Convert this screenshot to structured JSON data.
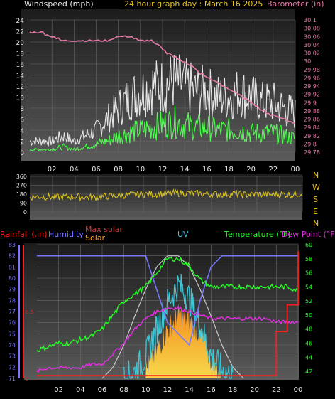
{
  "header": {
    "title": "24 hour graph day : March 16 2025",
    "left_label": "Windspeed (mph)",
    "right_label": "Barometer (in)"
  },
  "wind_dir_labels": [
    "N",
    "W",
    "S",
    "E",
    "N"
  ],
  "bottom_legend": {
    "rainfall": "Rainfall (.in)",
    "humidity": "Humidity",
    "max_solar": "Max solar",
    "solar": "Solar",
    "uv": "UV",
    "temperature": "Temperature (°F)",
    "dew_point": "Dew Point (°F)"
  },
  "colors": {
    "title": "#e6c319",
    "white_label": "#e8e8e8",
    "barometer": "#e87aa8",
    "wind_avg": "#4dff4d",
    "wind_gust": "#e6e6e6",
    "wind_dir": "#d9c21a",
    "rain": "#ff1c1c",
    "humidity": "#7777ff",
    "max_solar": "#c9c9c9",
    "solar": "#ffa020",
    "uv": "#3cc7d7",
    "temperature": "#22ff22",
    "dew_point": "#e62ee6"
  },
  "chart_data": [
    {
      "type": "line",
      "x_ticks": [
        "02",
        "04",
        "06",
        "08",
        "10",
        "12",
        "14",
        "16",
        "18",
        "20",
        "22",
        "00"
      ],
      "y_left_ticks": [
        "0",
        "2",
        "4",
        "6",
        "8",
        "10",
        "12",
        "14",
        "16",
        "18",
        "20",
        "22",
        "24"
      ],
      "y_right_ticks": [
        "29.78",
        "29.8",
        "29.82",
        "29.84",
        "29.86",
        "29.88",
        "29.9",
        "29.92",
        "29.94",
        "29.96",
        "29.98",
        "30",
        "30.02",
        "30.04",
        "30.06",
        "30.08",
        "30.1"
      ],
      "ylim_left": [
        0,
        24
      ],
      "ylim_right": [
        29.78,
        30.1
      ],
      "series": [
        {
          "name": "Windspeed (mph)",
          "axis": "left",
          "x": [
            0,
            1,
            2,
            3,
            4,
            5,
            6,
            7,
            8,
            9,
            10,
            11,
            12,
            13,
            14,
            15,
            16,
            17,
            18,
            19,
            20,
            21,
            22,
            23,
            24
          ],
          "values": [
            0.5,
            0.5,
            0.5,
            1,
            0.5,
            1,
            1.5,
            2,
            3,
            3.5,
            4,
            4.5,
            5,
            5.5,
            5,
            4.5,
            4.5,
            4,
            4,
            4,
            3.5,
            3.5,
            3.5,
            3,
            2.5
          ]
        },
        {
          "x": [
            0,
            1,
            2,
            3,
            4,
            5,
            6,
            7,
            8,
            9,
            10,
            11,
            12,
            13,
            14,
            15,
            16,
            17,
            18,
            19,
            20,
            21,
            22,
            23,
            24
          ],
          "values": [
            2,
            2,
            2,
            3,
            2,
            3,
            4,
            6,
            8,
            10,
            11,
            12,
            12,
            13,
            12,
            11,
            11,
            10,
            10,
            11,
            10,
            9,
            9,
            8,
            7
          ]
        },
        {
          "name": "Barometer (in)",
          "axis": "right",
          "x": [
            0,
            1,
            2,
            3,
            4,
            5,
            6,
            7,
            8,
            9,
            10,
            11,
            12,
            13,
            14,
            15,
            16,
            17,
            18,
            19,
            20,
            21,
            22,
            23,
            24
          ],
          "values": [
            30.07,
            30.07,
            30.06,
            30.05,
            30.05,
            30.05,
            30.05,
            30.05,
            30.06,
            30.06,
            30.05,
            30.05,
            30.03,
            30.01,
            30.0,
            29.98,
            29.96,
            29.95,
            29.93,
            29.92,
            29.9,
            29.88,
            29.87,
            29.86,
            29.85
          ]
        }
      ]
    },
    {
      "type": "line",
      "y_ticks": [
        "360",
        "270",
        "180",
        "90",
        "0"
      ],
      "ylim": [
        0,
        360
      ],
      "series": [
        {
          "x": [
            0,
            1,
            2,
            3,
            4,
            5,
            6,
            7,
            8,
            9,
            10,
            11,
            12,
            13,
            14,
            15,
            16,
            17,
            18,
            19,
            20,
            21,
            22,
            23,
            24
          ],
          "values": [
            150,
            155,
            150,
            150,
            155,
            150,
            150,
            160,
            165,
            175,
            180,
            180,
            185,
            190,
            190,
            185,
            180,
            180,
            185,
            175,
            180,
            175,
            180,
            175,
            190
          ]
        }
      ]
    },
    {
      "type": "line",
      "y_left_ticks": [
        "71",
        "72",
        "73",
        "74",
        "75",
        "76",
        "77",
        "78",
        "79",
        "80",
        "81",
        "82",
        "83"
      ],
      "y_right_ticks": [
        "42",
        "44",
        "46",
        "48",
        "50",
        "52",
        "54",
        "56",
        "58",
        "60"
      ],
      "rain_ticks": [
        "0",
        "0.5"
      ],
      "ylim_humidity": [
        71,
        83
      ],
      "ylim_temp": [
        41,
        60
      ],
      "ylim_rain": [
        0,
        1
      ],
      "series": [
        {
          "name": "Temperature (°F)",
          "x": [
            0,
            1,
            2,
            3,
            4,
            5,
            6,
            7,
            8,
            9,
            10,
            11,
            12,
            13,
            14,
            15,
            16,
            17,
            18,
            19,
            20,
            21,
            22,
            23,
            24
          ],
          "values": [
            45,
            45.5,
            46,
            46,
            46.5,
            47,
            48,
            50,
            52,
            53,
            54,
            56,
            58,
            58,
            57,
            55,
            54,
            54,
            54,
            54,
            54,
            54,
            54,
            54,
            53.5
          ]
        },
        {
          "name": "Dew Point (°F)",
          "x": [
            0,
            1,
            2,
            3,
            4,
            5,
            6,
            7,
            8,
            9,
            10,
            11,
            12,
            13,
            14,
            15,
            16,
            17,
            18,
            19,
            20,
            21,
            22,
            23,
            24
          ],
          "values": [
            42,
            42.5,
            42.5,
            42.5,
            42.5,
            43,
            43,
            44.5,
            46,
            48,
            49.5,
            50.5,
            51,
            51,
            50.5,
            50,
            49.5,
            49.5,
            49.5,
            49.5,
            49.5,
            49.5,
            49,
            49,
            49
          ]
        },
        {
          "name": "Humidity",
          "x": [
            0,
            1,
            2,
            3,
            4,
            5,
            6,
            7,
            8,
            9,
            10,
            11,
            12,
            13,
            14,
            15,
            16,
            17,
            18,
            19,
            20,
            21,
            22,
            23,
            24
          ],
          "values": [
            82,
            82,
            82,
            82,
            82,
            82,
            82,
            82,
            82,
            82,
            82,
            79,
            76,
            75,
            74,
            78,
            81,
            82,
            82,
            82,
            82,
            82,
            82,
            82,
            82
          ]
        },
        {
          "name": "Max solar",
          "x": [
            6,
            7,
            8,
            9,
            10,
            11,
            12,
            13,
            14,
            15,
            16,
            17,
            18,
            19
          ],
          "values": [
            0,
            0.5,
            1.5,
            2.8,
            4.0,
            5.0,
            5.5,
            5.5,
            5.0,
            4.0,
            2.8,
            1.5,
            0.5,
            0
          ]
        },
        {
          "name": "Solar",
          "x": [
            10,
            11,
            12,
            13,
            14,
            15,
            16,
            17
          ],
          "values": [
            0.3,
            1.2,
            2.2,
            2.8,
            2.6,
            2.0,
            0.8,
            0.2
          ]
        },
        {
          "name": "UV",
          "x": [
            8,
            9,
            10,
            11,
            12,
            13,
            14,
            15,
            16,
            17,
            18
          ],
          "values": [
            0,
            0.3,
            1.0,
            2.2,
            3.4,
            4.2,
            3.6,
            2.4,
            1.0,
            0.4,
            0
          ]
        },
        {
          "name": "Rainfall (.in)",
          "x": [
            0,
            1,
            2,
            3,
            4,
            5,
            6,
            7,
            8,
            9,
            10,
            11,
            12,
            13,
            14,
            15,
            16,
            17,
            18,
            19,
            20,
            21,
            22,
            23,
            24
          ],
          "values": [
            0.02,
            0.02,
            0.02,
            0.02,
            0.02,
            0.02,
            0.02,
            0.02,
            0.02,
            0.02,
            0.02,
            0.02,
            0.02,
            0.02,
            0.02,
            0.02,
            0.02,
            0.02,
            0.02,
            0.02,
            0.02,
            0.02,
            0.35,
            0.55,
            0.95
          ]
        }
      ]
    }
  ]
}
